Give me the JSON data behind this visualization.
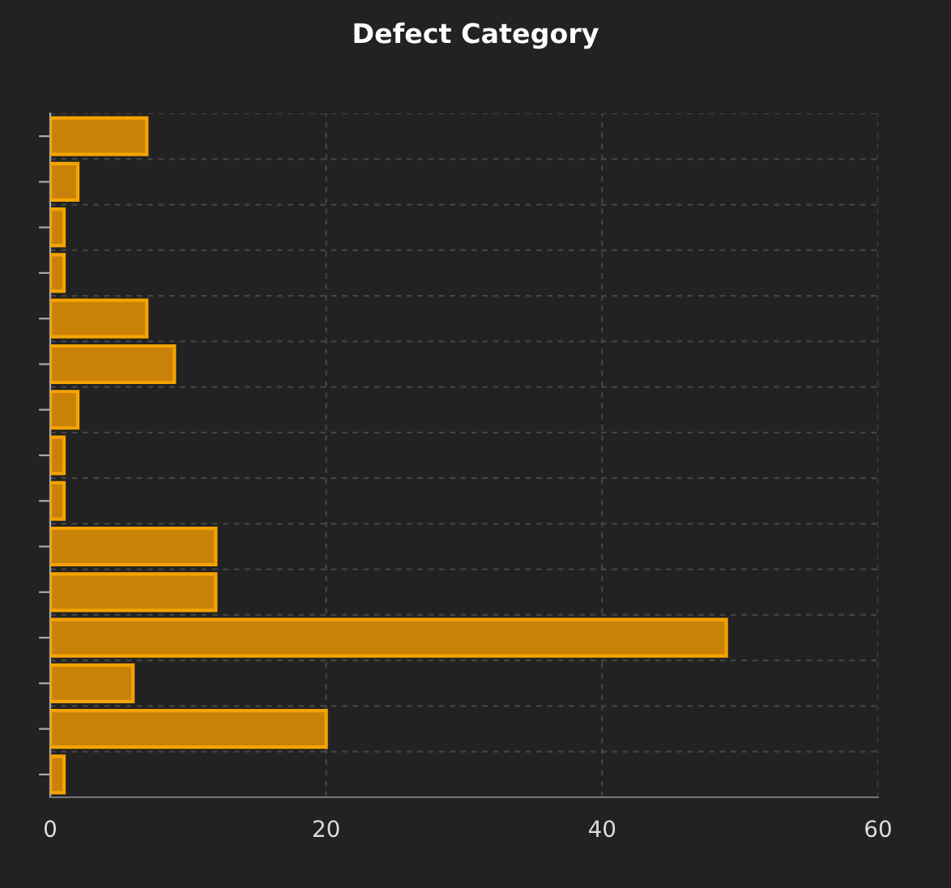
{
  "chart_data": {
    "type": "bar",
    "orientation": "horizontal",
    "title": "Defect Category",
    "categories": [
      null,
      null,
      null,
      null,
      null,
      null,
      null,
      null,
      null,
      null,
      null,
      null,
      null,
      null,
      null
    ],
    "values": [
      7,
      2,
      1,
      1,
      7,
      9,
      2,
      1,
      1,
      12,
      12,
      49,
      6,
      20,
      1
    ],
    "color": "#c98208",
    "xlim": [
      0,
      60
    ],
    "xticks": [
      0,
      20,
      40,
      60
    ],
    "grid": true,
    "tick_labels": "x"
  }
}
